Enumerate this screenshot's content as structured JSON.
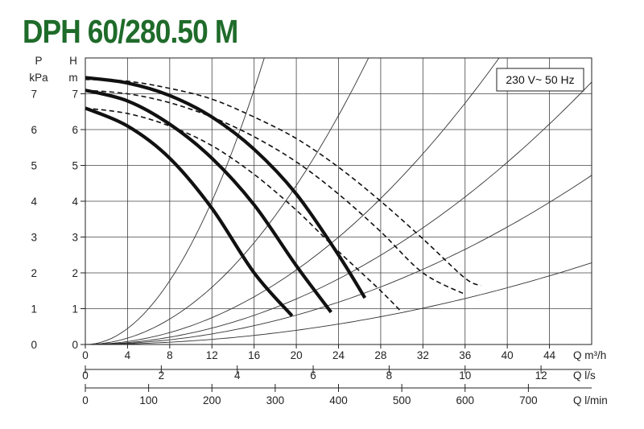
{
  "title": "DPH 60/280.50 M",
  "chart_data": {
    "type": "line",
    "title": "DPH 60/280.50 M",
    "annotation": "230 V~ 50 Hz",
    "left_axes": {
      "p": {
        "symbol": "P",
        "unit": "kPa",
        "ticks": [
          "0",
          "1",
          "2",
          "3",
          "4",
          "5",
          "6",
          "7"
        ]
      },
      "h": {
        "symbol": "H",
        "unit": "m",
        "ticks": [
          "0",
          "1",
          "2",
          "3",
          "4",
          "5",
          "6",
          "7"
        ]
      }
    },
    "x_axes": {
      "m3h": {
        "label": "Q m³/h",
        "ticks": [
          "0",
          "4",
          "8",
          "12",
          "16",
          "20",
          "24",
          "28",
          "32",
          "36",
          "40",
          "44"
        ]
      },
      "ls": {
        "label": "Q l/s",
        "ticks": [
          "0",
          "2",
          "4",
          "6",
          "8",
          "10",
          "12"
        ]
      },
      "lmin": {
        "label": "Q l/min",
        "ticks": [
          "0",
          "100",
          "200",
          "300",
          "400",
          "500",
          "600",
          "700"
        ]
      }
    },
    "xlim": [
      0,
      48
    ],
    "ylim": [
      0,
      8
    ],
    "grid": true,
    "series": [
      {
        "style": "solid",
        "x": [
          0,
          4,
          8,
          12,
          16,
          19.6
        ],
        "y": [
          6.6,
          6.1,
          5.2,
          3.8,
          2.0,
          0.8
        ]
      },
      {
        "style": "solid",
        "x": [
          0,
          4,
          8,
          12,
          16,
          20,
          23.3
        ],
        "y": [
          7.1,
          6.8,
          6.15,
          5.2,
          3.9,
          2.2,
          0.9
        ]
      },
      {
        "style": "solid",
        "x": [
          0,
          4,
          8,
          12,
          16,
          20,
          24,
          26.5
        ],
        "y": [
          7.45,
          7.3,
          6.95,
          6.35,
          5.45,
          4.2,
          2.5,
          1.3
        ]
      },
      {
        "style": "dashed",
        "x": [
          0,
          4,
          8,
          12,
          16,
          20,
          24,
          28,
          30
        ],
        "y": [
          6.6,
          6.45,
          6.1,
          5.55,
          4.75,
          3.75,
          2.6,
          1.5,
          0.9
        ]
      },
      {
        "style": "dashed",
        "x": [
          0,
          4,
          8,
          12,
          16,
          20,
          24,
          28,
          32,
          36
        ],
        "y": [
          7.1,
          7.0,
          6.75,
          6.35,
          5.8,
          5.1,
          4.2,
          3.15,
          2.0,
          1.4
        ]
      },
      {
        "style": "dashed",
        "x": [
          0,
          4,
          8,
          12,
          16,
          20,
          24,
          28,
          32,
          36,
          37.5
        ],
        "y": [
          7.4,
          7.35,
          7.15,
          6.85,
          6.35,
          5.75,
          4.95,
          4.0,
          2.95,
          1.85,
          1.65
        ]
      }
    ],
    "system_curves_k": [
      0.0278,
      0.0111,
      0.0052,
      0.00318,
      0.00205,
      0.00099
    ]
  }
}
